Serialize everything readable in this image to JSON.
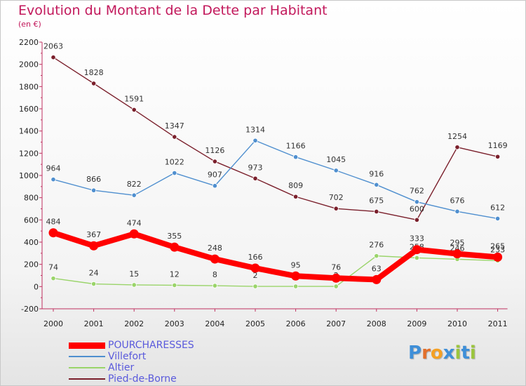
{
  "title": "Evolution du Montant de la Dette par Habitant",
  "subtitle": "(en €)",
  "logo": {
    "text": "Proxiti",
    "letter_colors": [
      "#3f8fd8",
      "#e2702c",
      "#f4a024",
      "#3f8fd8",
      "#9bc53d",
      "#3f8fd8",
      "#9bc53d"
    ]
  },
  "chart_data": {
    "type": "line",
    "x": [
      "2000",
      "2001",
      "2002",
      "2003",
      "2004",
      "2005",
      "2006",
      "2007",
      "2008",
      "2009",
      "2010",
      "2011"
    ],
    "ylim": [
      -200,
      2200
    ],
    "yticks": [
      "-200",
      "0",
      "200",
      "400",
      "600",
      "800",
      "1000",
      "1200",
      "1400",
      "1600",
      "1800",
      "2000",
      "2200"
    ],
    "grid": false,
    "legend_position": "bottom-left",
    "series": [
      {
        "name": "Pied-de-Borne",
        "color": "#7a1f2b",
        "values": [
          2063,
          1828,
          1591,
          1347,
          1126,
          973,
          809,
          702,
          675,
          600,
          1254,
          1169
        ],
        "labels": [
          "2063",
          "1828",
          "1591",
          "1347",
          "1126",
          "973",
          "809",
          "702",
          "675",
          "600",
          "1254",
          "1169"
        ]
      },
      {
        "name": "Villefort",
        "color": "#4f8fcf",
        "values": [
          964,
          866,
          822,
          1022,
          907,
          1314,
          1166,
          1045,
          916,
          762,
          676,
          612
        ],
        "labels": [
          "964",
          "866",
          "822",
          "1022",
          "907",
          "1314",
          "1166",
          "1045",
          "916",
          "762",
          "676",
          "612"
        ]
      },
      {
        "name": "Altier",
        "color": "#9ad46a",
        "values": [
          74,
          24,
          15,
          12,
          8,
          2,
          2,
          2,
          276,
          258,
          246,
          233
        ],
        "labels": [
          "74",
          "24",
          "15",
          "12",
          "8",
          "2",
          "2",
          "2",
          "276",
          "258",
          "246",
          "233"
        ]
      },
      {
        "name": "POURCHARESSES",
        "color": "#ff0000",
        "values": [
          484,
          367,
          474,
          355,
          248,
          166,
          95,
          76,
          63,
          333,
          295,
          265
        ],
        "labels": [
          "484",
          "367",
          "474",
          "355",
          "248",
          "166",
          "95",
          "76",
          "63",
          "333",
          "295",
          "265"
        ]
      }
    ]
  },
  "legend": [
    {
      "name": "POURCHARESSES",
      "color": "#ff0000"
    },
    {
      "name": "Villefort",
      "color": "#4f8fcf"
    },
    {
      "name": "Altier",
      "color": "#9ad46a"
    },
    {
      "name": "Pied-de-Borne",
      "color": "#7a1f2b"
    }
  ]
}
